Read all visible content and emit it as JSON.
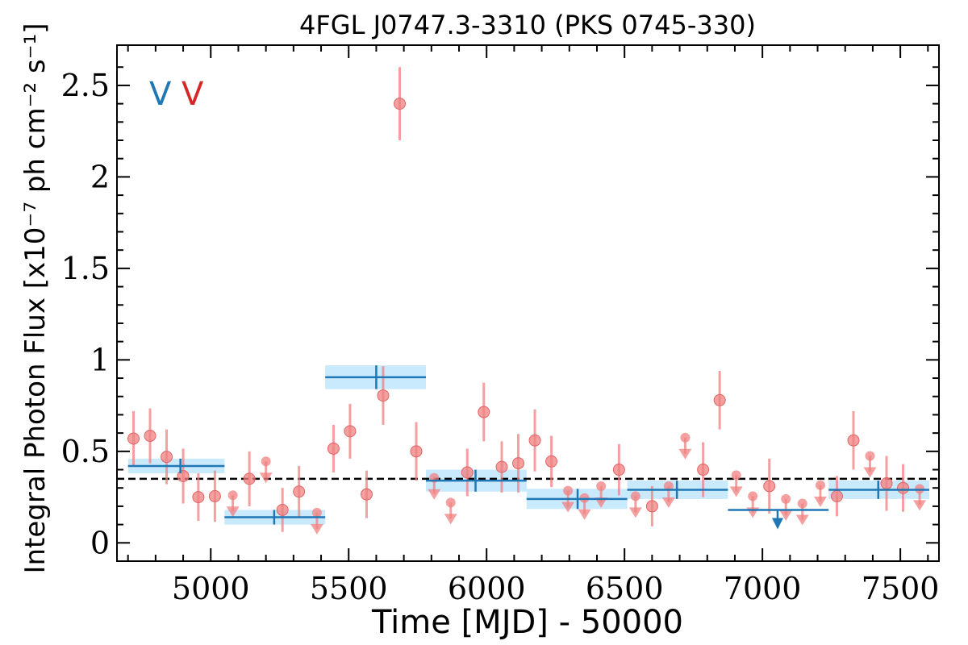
{
  "chart_data": {
    "type": "scatter",
    "title": "4FGL J0747.3-3310 (PKS 0745-330)",
    "xlabel": "Time [MJD] - 50000",
    "ylabel": "Integral Photon Flux [x10⁻⁷ ph cm⁻² s⁻¹]",
    "legend": [
      "V",
      "V"
    ],
    "legend_placement": "top-left",
    "xlim": [
      4660,
      7640
    ],
    "ylim": [
      -0.1,
      2.72
    ],
    "x_ticks": [
      5000,
      5500,
      6000,
      6500,
      7000,
      7500
    ],
    "x_tick_labels": [
      "5000",
      "5500",
      "6000",
      "6500",
      "7000",
      "7500"
    ],
    "y_ticks": [
      0,
      0.5,
      1,
      1.5,
      2,
      2.5
    ],
    "y_tick_labels": [
      "0",
      "0.5",
      "1",
      "1.5",
      "2",
      "2.5"
    ],
    "mean_flux": 0.35,
    "colors": {
      "blue": "#1f77b4",
      "red": "#d62728",
      "red_marker": "#f08080",
      "band": "#87cefa"
    },
    "series": [
      {
        "name": "V",
        "color": "#1f77b4",
        "bins": [
          {
            "start": 4700,
            "end": 5050,
            "x": 4890,
            "y": 0.42,
            "err": 0.04
          },
          {
            "start": 5050,
            "end": 5415,
            "x": 5230,
            "y": 0.14,
            "err": 0.04
          },
          {
            "start": 5415,
            "end": 5780,
            "x": 5600,
            "y": 0.905,
            "err": 0.065
          },
          {
            "start": 5780,
            "end": 6145,
            "x": 5960,
            "y": 0.34,
            "err": 0.06
          },
          {
            "start": 6145,
            "end": 6510,
            "x": 6330,
            "y": 0.24,
            "err": 0.055
          },
          {
            "start": 6510,
            "end": 6875,
            "x": 6690,
            "y": 0.29,
            "err": 0.05
          },
          {
            "start": 6875,
            "end": 7240,
            "x": 7055,
            "y": 0.18,
            "upper_limit": true
          },
          {
            "start": 7240,
            "end": 7605,
            "x": 7420,
            "y": 0.29,
            "err": 0.05
          }
        ]
      },
      {
        "name": "V",
        "color": "#d62728",
        "points": [
          {
            "x": 4720,
            "y": 0.57,
            "err": 0.15
          },
          {
            "x": 4780,
            "y": 0.585,
            "err": 0.15
          },
          {
            "x": 4840,
            "y": 0.47,
            "err": 0.15
          },
          {
            "x": 4900,
            "y": 0.365,
            "err": 0.15
          },
          {
            "x": 4955,
            "y": 0.25,
            "err": 0.13
          },
          {
            "x": 5015,
            "y": 0.255,
            "err": 0.14
          },
          {
            "x": 5080,
            "y": 0.26,
            "upper_limit": true
          },
          {
            "x": 5140,
            "y": 0.35,
            "err": 0.15
          },
          {
            "x": 5200,
            "y": 0.445,
            "upper_limit": true
          },
          {
            "x": 5260,
            "y": 0.18,
            "err": 0.12
          },
          {
            "x": 5320,
            "y": 0.28,
            "err": 0.14
          },
          {
            "x": 5385,
            "y": 0.165,
            "upper_limit": true
          },
          {
            "x": 5445,
            "y": 0.515,
            "err": 0.13
          },
          {
            "x": 5505,
            "y": 0.61,
            "err": 0.15
          },
          {
            "x": 5565,
            "y": 0.265,
            "err": 0.13
          },
          {
            "x": 5625,
            "y": 0.805,
            "err": 0.16
          },
          {
            "x": 5685,
            "y": 2.4,
            "err": 0.2
          },
          {
            "x": 5745,
            "y": 0.5,
            "err": 0.16
          },
          {
            "x": 5810,
            "y": 0.355,
            "upper_limit": true
          },
          {
            "x": 5870,
            "y": 0.22,
            "upper_limit": true
          },
          {
            "x": 5930,
            "y": 0.385,
            "err": 0.13
          },
          {
            "x": 5990,
            "y": 0.715,
            "err": 0.16
          },
          {
            "x": 6055,
            "y": 0.415,
            "err": 0.14
          },
          {
            "x": 6115,
            "y": 0.435,
            "err": 0.16
          },
          {
            "x": 6175,
            "y": 0.56,
            "err": 0.17
          },
          {
            "x": 6235,
            "y": 0.445,
            "err": 0.14
          },
          {
            "x": 6295,
            "y": 0.285,
            "upper_limit": true
          },
          {
            "x": 6355,
            "y": 0.245,
            "upper_limit": true
          },
          {
            "x": 6415,
            "y": 0.31,
            "upper_limit": true
          },
          {
            "x": 6480,
            "y": 0.4,
            "err": 0.14
          },
          {
            "x": 6540,
            "y": 0.255,
            "upper_limit": true
          },
          {
            "x": 6600,
            "y": 0.2,
            "err": 0.11
          },
          {
            "x": 6660,
            "y": 0.31,
            "upper_limit": true
          },
          {
            "x": 6720,
            "y": 0.575,
            "upper_limit": true
          },
          {
            "x": 6785,
            "y": 0.4,
            "err": 0.15
          },
          {
            "x": 6845,
            "y": 0.78,
            "err": 0.16
          },
          {
            "x": 6905,
            "y": 0.37,
            "upper_limit": true
          },
          {
            "x": 6965,
            "y": 0.255,
            "upper_limit": true
          },
          {
            "x": 7025,
            "y": 0.31,
            "err": 0.15
          },
          {
            "x": 7085,
            "y": 0.24,
            "upper_limit": true
          },
          {
            "x": 7145,
            "y": 0.215,
            "upper_limit": true
          },
          {
            "x": 7210,
            "y": 0.315,
            "upper_limit": true
          },
          {
            "x": 7270,
            "y": 0.255,
            "err": 0.11
          },
          {
            "x": 7330,
            "y": 0.56,
            "err": 0.16
          },
          {
            "x": 7390,
            "y": 0.475,
            "upper_limit": true
          },
          {
            "x": 7450,
            "y": 0.325,
            "err": 0.15
          },
          {
            "x": 7510,
            "y": 0.3,
            "err": 0.13
          },
          {
            "x": 7570,
            "y": 0.295,
            "upper_limit": true
          }
        ]
      }
    ]
  }
}
